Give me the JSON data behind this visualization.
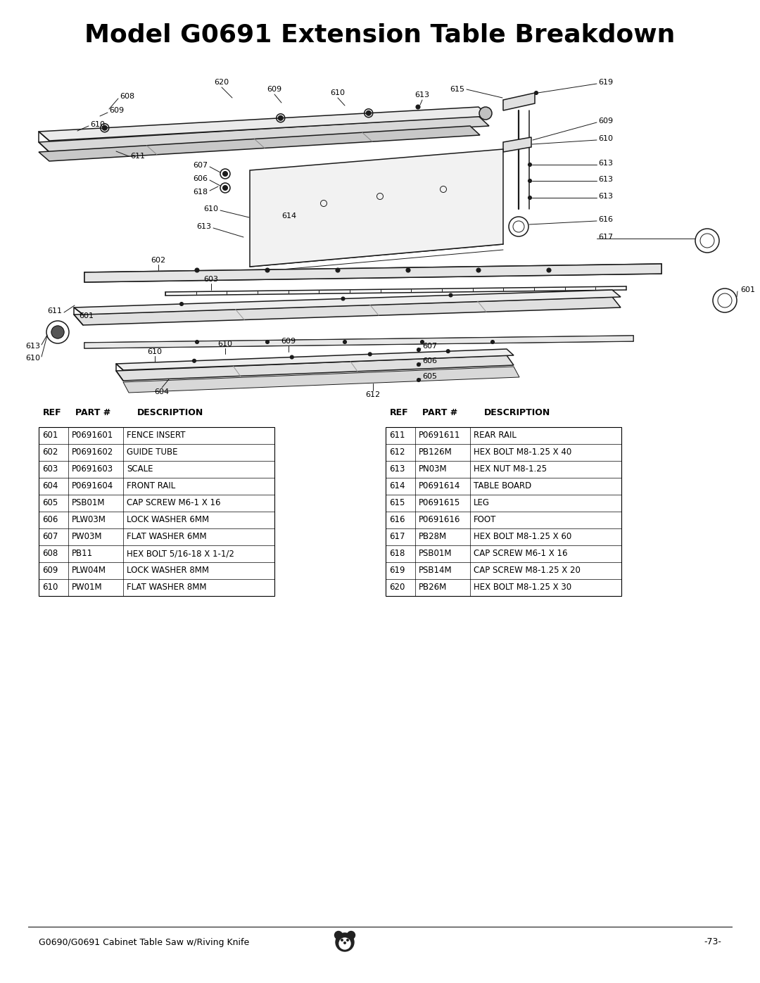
{
  "title": "Model G0691 Extension Table Breakdown",
  "bg_color": "#ffffff",
  "title_fontsize": 26,
  "footer_left": "G0690/G0691 Cabinet Table Saw w/Riving Knife",
  "footer_right": "-73-",
  "table_headers": [
    "REF",
    "PART #",
    "DESCRIPTION"
  ],
  "table_left": [
    [
      "601",
      "P0691601",
      "FENCE INSERT"
    ],
    [
      "602",
      "P0691602",
      "GUIDE TUBE"
    ],
    [
      "603",
      "P0691603",
      "SCALE"
    ],
    [
      "604",
      "P0691604",
      "FRONT RAIL"
    ],
    [
      "605",
      "PSB01M",
      "CAP SCREW M6-1 X 16"
    ],
    [
      "606",
      "PLW03M",
      "LOCK WASHER 6MM"
    ],
    [
      "607",
      "PW03M",
      "FLAT WASHER 6MM"
    ],
    [
      "608",
      "PB11",
      "HEX BOLT 5/16-18 X 1-1/2"
    ],
    [
      "609",
      "PLW04M",
      "LOCK WASHER 8MM"
    ],
    [
      "610",
      "PW01M",
      "FLAT WASHER 8MM"
    ]
  ],
  "table_right": [
    [
      "611",
      "P0691611",
      "REAR RAIL"
    ],
    [
      "612",
      "PB126M",
      "HEX BOLT M8-1.25 X 40"
    ],
    [
      "613",
      "PN03M",
      "HEX NUT M8-1.25"
    ],
    [
      "614",
      "P0691614",
      "TABLE BOARD"
    ],
    [
      "615",
      "P0691615",
      "LEG"
    ],
    [
      "616",
      "P0691616",
      "FOOT"
    ],
    [
      "617",
      "PB28M",
      "HEX BOLT M8-1.25 X 60"
    ],
    [
      "618",
      "PSB01M",
      "CAP SCREW M6-1 X 16"
    ],
    [
      "619",
      "PSB14M",
      "CAP SCREW M8-1.25 X 20"
    ],
    [
      "620",
      "PB26M",
      "HEX BOLT M8-1.25 X 30"
    ]
  ]
}
